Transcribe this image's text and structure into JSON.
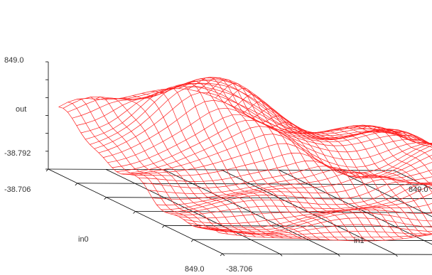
{
  "chart_data": {
    "type": "surface",
    "title": "",
    "xlabel": "in0",
    "ylabel": "in1",
    "zlabel": "out",
    "x_range": [
      -38.706,
      849.0
    ],
    "y_range": [
      -38.706,
      849.0
    ],
    "z_range": [
      -38.792,
      849.0
    ],
    "x_tick_labels": [
      "-38.706",
      "849.0"
    ],
    "y_tick_labels": [
      "-38.706",
      "849.0"
    ],
    "z_tick_labels": [
      "849.0",
      "-38.792"
    ],
    "wireframe_color": "#ff2020",
    "grid_color": "#000000",
    "grid_divisions": 6,
    "mesh_resolution": 36,
    "surface_description": "wireframe surface with a broad peak near the back center, a long diagonal ridge, and low flat regions near the left and front corners"
  }
}
